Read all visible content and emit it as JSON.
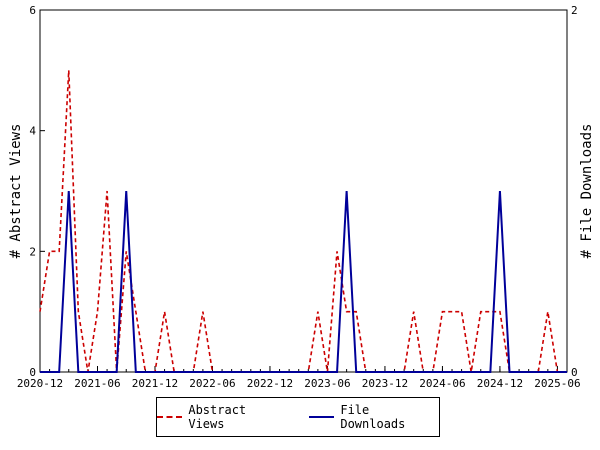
{
  "chart_data": {
    "type": "line",
    "x": [
      "2020-12",
      "2021-01",
      "2021-02",
      "2021-03",
      "2021-04",
      "2021-05",
      "2021-06",
      "2021-07",
      "2021-08",
      "2021-09",
      "2021-10",
      "2021-11",
      "2021-12",
      "2022-01",
      "2022-02",
      "2022-03",
      "2022-04",
      "2022-05",
      "2022-06",
      "2022-07",
      "2022-08",
      "2022-09",
      "2022-10",
      "2022-11",
      "2022-12",
      "2023-01",
      "2023-02",
      "2023-03",
      "2023-04",
      "2023-05",
      "2023-06",
      "2023-07",
      "2023-08",
      "2023-09",
      "2023-10",
      "2023-11",
      "2023-12",
      "2024-01",
      "2024-02",
      "2024-03",
      "2024-04",
      "2024-05",
      "2024-06",
      "2024-07",
      "2024-08",
      "2024-09",
      "2024-10",
      "2024-11",
      "2024-12",
      "2025-01",
      "2025-02",
      "2025-03",
      "2025-04",
      "2025-05",
      "2025-06",
      "2025-07"
    ],
    "series": [
      {
        "name": "Abstract Views",
        "axis": "left",
        "color": "#cc0000",
        "style": "dashed",
        "values": [
          1,
          2,
          2,
          5,
          1,
          0,
          1,
          3,
          0,
          2,
          1,
          0,
          0,
          1,
          0,
          0,
          0,
          1,
          0,
          0,
          0,
          0,
          0,
          0,
          0,
          0,
          0,
          0,
          0,
          1,
          0,
          2,
          1,
          1,
          0,
          0,
          0,
          0,
          0,
          1,
          0,
          0,
          1,
          1,
          1,
          0,
          1,
          1,
          1,
          0,
          0,
          0,
          0,
          1,
          0,
          0
        ]
      },
      {
        "name": "File Downloads",
        "axis": "right",
        "color": "#000099",
        "style": "solid",
        "values": [
          0,
          0,
          0,
          1,
          0,
          0,
          0,
          0,
          0,
          1,
          0,
          0,
          0,
          0,
          0,
          0,
          0,
          0,
          0,
          0,
          0,
          0,
          0,
          0,
          0,
          0,
          0,
          0,
          0,
          0,
          0,
          0,
          1,
          0,
          0,
          0,
          0,
          0,
          0,
          0,
          0,
          0,
          0,
          0,
          0,
          0,
          0,
          0,
          1,
          0,
          0,
          0,
          0,
          0,
          0,
          0
        ]
      }
    ],
    "x_tick_labels": [
      "2020-12",
      "2021-06",
      "2021-12",
      "2022-06",
      "2022-12",
      "2023-06",
      "2023-12",
      "2024-06",
      "2024-12",
      "2025-06"
    ],
    "ylabel_left": "# Abstract Views",
    "ylabel_right": "# File Downloads",
    "ylim_left": [
      0,
      6
    ],
    "ylim_right": [
      0,
      2
    ],
    "y_ticks_left": [
      "0",
      "2",
      "4",
      "6"
    ],
    "y_ticks_right": [
      "0",
      "2"
    ],
    "grid": false,
    "legend_position": "bottom"
  }
}
